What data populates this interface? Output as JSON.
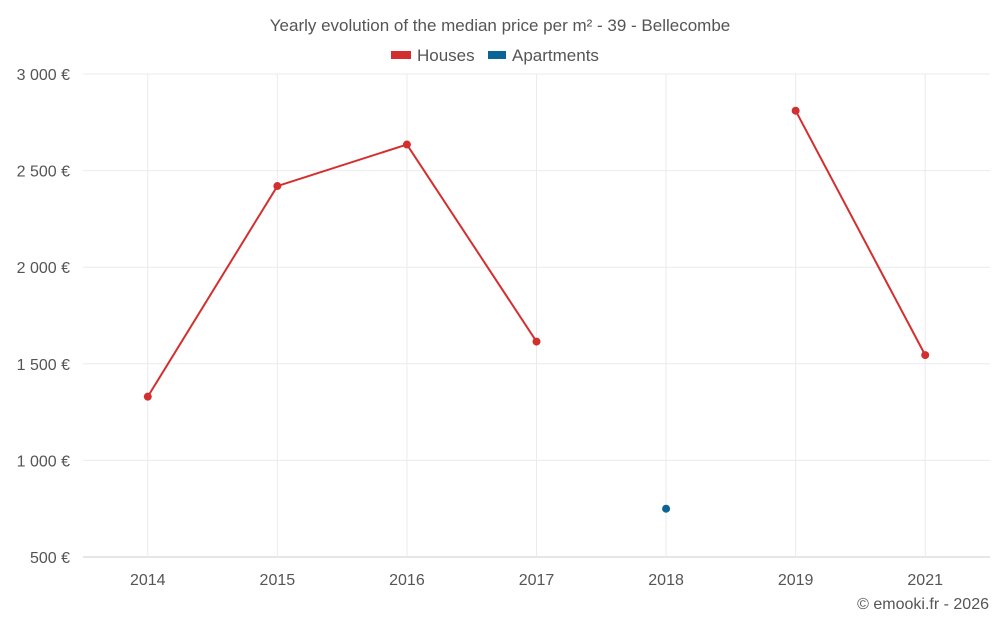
{
  "chart_data": {
    "type": "line",
    "title": "Yearly evolution of the median price per m² - 39 - Bellecombe",
    "categories": [
      "2014",
      "2015",
      "2016",
      "2017",
      "2018",
      "2019",
      "2021"
    ],
    "y_ticks": [
      "500 €",
      "1 000 €",
      "1 500 €",
      "2 000 €",
      "2 500 €",
      "3 000 €"
    ],
    "ylim": [
      500,
      3000
    ],
    "grid": true,
    "legend_position": "top-center",
    "series": [
      {
        "name": "Houses",
        "color": "#d32f2f",
        "values": [
          1330,
          2420,
          2635,
          1615,
          null,
          2810,
          1545
        ]
      },
      {
        "name": "Apartments",
        "color": "#0a6496",
        "values": [
          null,
          null,
          null,
          null,
          750,
          null,
          null
        ]
      }
    ]
  },
  "credit": "© emooki.fr - 2026"
}
